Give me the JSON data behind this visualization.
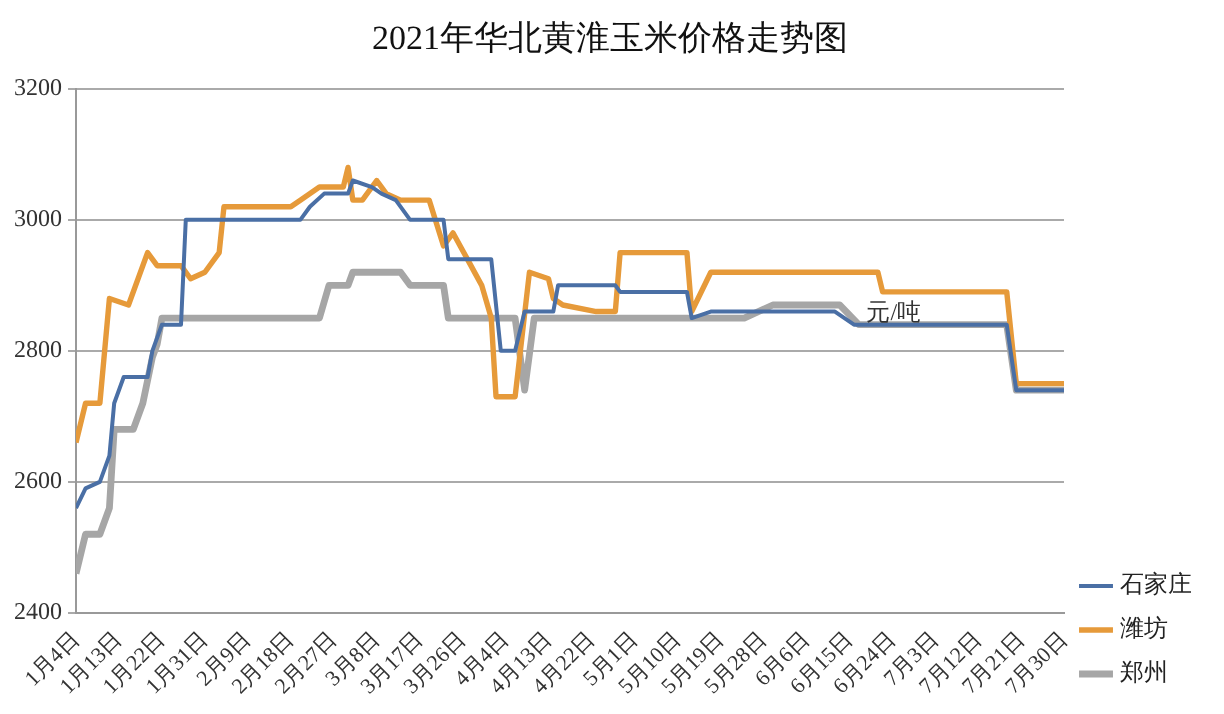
{
  "chart_data": {
    "type": "line",
    "title": "2021年华北黄淮玉米价格走势图",
    "annotations": [
      "元/吨"
    ],
    "xlim": [
      "2021-01-04",
      "2021-07-30"
    ],
    "xticks": [
      {
        "value": "2021-01-04",
        "label": "1月4日"
      },
      {
        "value": "2021-01-13",
        "label": "1月13日"
      },
      {
        "value": "2021-01-22",
        "label": "1月22日"
      },
      {
        "value": "2021-01-31",
        "label": "1月31日"
      },
      {
        "value": "2021-02-09",
        "label": "2月9日"
      },
      {
        "value": "2021-02-18",
        "label": "2月18日"
      },
      {
        "value": "2021-02-27",
        "label": "2月27日"
      },
      {
        "value": "2021-03-08",
        "label": "3月8日"
      },
      {
        "value": "2021-03-17",
        "label": "3月17日"
      },
      {
        "value": "2021-03-26",
        "label": "3月26日"
      },
      {
        "value": "2021-04-04",
        "label": "4月4日"
      },
      {
        "value": "2021-04-13",
        "label": "4月13日"
      },
      {
        "value": "2021-04-22",
        "label": "4月22日"
      },
      {
        "value": "2021-05-01",
        "label": "5月1日"
      },
      {
        "value": "2021-05-10",
        "label": "5月10日"
      },
      {
        "value": "2021-05-19",
        "label": "5月19日"
      },
      {
        "value": "2021-05-28",
        "label": "5月28日"
      },
      {
        "value": "2021-06-06",
        "label": "6月6日"
      },
      {
        "value": "2021-06-15",
        "label": "6月15日"
      },
      {
        "value": "2021-06-24",
        "label": "6月24日"
      },
      {
        "value": "2021-07-03",
        "label": "7月3日"
      },
      {
        "value": "2021-07-12",
        "label": "7月12日"
      },
      {
        "value": "2021-07-21",
        "label": "7月21日"
      },
      {
        "value": "2021-07-30",
        "label": "7月30日"
      }
    ],
    "ylim": [
      2400,
      3200
    ],
    "yticks": [
      2400,
      2600,
      2800,
      3000,
      3200
    ],
    "grid": "y",
    "legend": "right",
    "marker": "none",
    "line_style": "solid",
    "series": [
      {
        "name": "石家庄",
        "color": "#4a6fa5",
        "x": [
          "2021-01-04",
          "2021-01-06",
          "2021-01-09",
          "2021-01-11",
          "2021-01-12",
          "2021-01-14",
          "2021-01-19",
          "2021-01-20",
          "2021-01-22",
          "2021-01-26",
          "2021-01-27",
          "2021-02-20",
          "2021-02-22",
          "2021-02-25",
          "2021-03-02",
          "2021-03-03",
          "2021-03-07",
          "2021-03-09",
          "2021-03-12",
          "2021-03-15",
          "2021-03-22",
          "2021-03-23",
          "2021-04-01",
          "2021-04-03",
          "2021-04-06",
          "2021-04-08",
          "2021-04-14",
          "2021-04-15",
          "2021-04-27",
          "2021-04-28",
          "2021-05-12",
          "2021-05-13",
          "2021-05-17",
          "2021-06-12",
          "2021-06-16",
          "2021-07-18",
          "2021-07-20",
          "2021-07-30"
        ],
        "values": [
          2560,
          2590,
          2600,
          2640,
          2720,
          2760,
          2760,
          2800,
          2840,
          2840,
          3000,
          3000,
          3020,
          3040,
          3040,
          3060,
          3050,
          3040,
          3030,
          3000,
          3000,
          2940,
          2940,
          2800,
          2800,
          2860,
          2860,
          2900,
          2900,
          2890,
          2890,
          2850,
          2860,
          2860,
          2840,
          2840,
          2740,
          2740
        ]
      },
      {
        "name": "潍坊",
        "color": "#e69a3a",
        "x": [
          "2021-01-04",
          "2021-01-06",
          "2021-01-09",
          "2021-01-11",
          "2021-01-15",
          "2021-01-19",
          "2021-01-21",
          "2021-01-26",
          "2021-01-28",
          "2021-01-31",
          "2021-02-03",
          "2021-02-04",
          "2021-02-18",
          "2021-02-20",
          "2021-02-24",
          "2021-03-01",
          "2021-03-02",
          "2021-03-03",
          "2021-03-05",
          "2021-03-08",
          "2021-03-10",
          "2021-03-13",
          "2021-03-19",
          "2021-03-22",
          "2021-03-24",
          "2021-03-27",
          "2021-03-30",
          "2021-04-01",
          "2021-04-02",
          "2021-04-06",
          "2021-04-09",
          "2021-04-13",
          "2021-04-14",
          "2021-04-16",
          "2021-04-23",
          "2021-04-27",
          "2021-04-28",
          "2021-05-12",
          "2021-05-13",
          "2021-05-17",
          "2021-06-21",
          "2021-06-22",
          "2021-07-18",
          "2021-07-20",
          "2021-07-30"
        ],
        "values": [
          2660,
          2720,
          2720,
          2880,
          2870,
          2950,
          2930,
          2930,
          2910,
          2920,
          2950,
          3020,
          3020,
          3030,
          3050,
          3050,
          3080,
          3030,
          3030,
          3060,
          3040,
          3030,
          3030,
          2960,
          2980,
          2940,
          2900,
          2850,
          2730,
          2730,
          2920,
          2910,
          2880,
          2870,
          2860,
          2860,
          2950,
          2950,
          2860,
          2920,
          2920,
          2890,
          2890,
          2750,
          2750
        ]
      },
      {
        "name": "郑州",
        "color": "#a6a6a6",
        "x": [
          "2021-01-04",
          "2021-01-06",
          "2021-01-09",
          "2021-01-11",
          "2021-01-12",
          "2021-01-16",
          "2021-01-18",
          "2021-01-20",
          "2021-01-21",
          "2021-01-22",
          "2021-02-24",
          "2021-02-26",
          "2021-03-02",
          "2021-03-03",
          "2021-03-13",
          "2021-03-15",
          "2021-03-22",
          "2021-03-23",
          "2021-04-06",
          "2021-04-08",
          "2021-04-10",
          "2021-05-24",
          "2021-05-30",
          "2021-06-13",
          "2021-06-17",
          "2021-07-18",
          "2021-07-20",
          "2021-07-30"
        ],
        "values": [
          2460,
          2520,
          2520,
          2560,
          2680,
          2680,
          2720,
          2790,
          2810,
          2850,
          2850,
          2900,
          2900,
          2920,
          2920,
          2900,
          2900,
          2850,
          2850,
          2740,
          2850,
          2850,
          2870,
          2870,
          2840,
          2840,
          2740,
          2740
        ]
      }
    ]
  }
}
